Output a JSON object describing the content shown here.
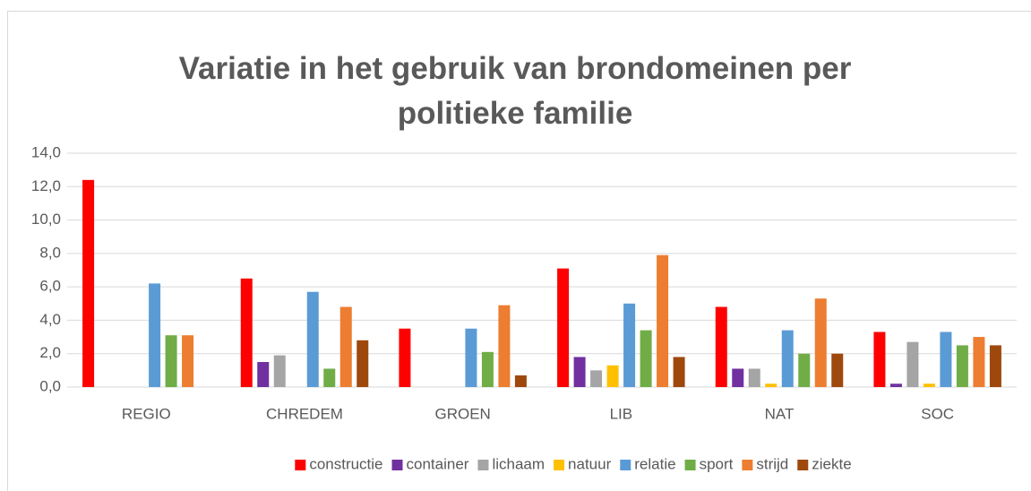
{
  "chart_data": {
    "type": "bar",
    "title": "Variatie in het gebruik van brondomeinen per politieke familie",
    "categories": [
      "REGIO",
      "CHREDEM",
      "GROEN",
      "LIB",
      "NAT",
      "SOC"
    ],
    "series": [
      {
        "name": "constructie",
        "color": "#ff0000",
        "values": [
          12.4,
          6.5,
          3.5,
          7.1,
          4.8,
          3.3
        ]
      },
      {
        "name": "container",
        "color": "#7030a0",
        "values": [
          0,
          1.5,
          0,
          1.8,
          1.1,
          0.2
        ]
      },
      {
        "name": "lichaam",
        "color": "#a5a5a5",
        "values": [
          0,
          1.9,
          0,
          1.0,
          1.1,
          2.7
        ]
      },
      {
        "name": "natuur",
        "color": "#ffc000",
        "values": [
          0,
          0,
          0,
          1.3,
          0.2,
          0.2
        ]
      },
      {
        "name": "relatie",
        "color": "#5b9bd5",
        "values": [
          6.2,
          5.7,
          3.5,
          5.0,
          3.4,
          3.3
        ]
      },
      {
        "name": "sport",
        "color": "#70ad47",
        "values": [
          3.1,
          1.1,
          2.1,
          3.4,
          2.0,
          2.5
        ]
      },
      {
        "name": "strijd",
        "color": "#ed7d31",
        "values": [
          3.1,
          4.8,
          4.9,
          7.9,
          5.3,
          3.0
        ]
      },
      {
        "name": "ziekte",
        "color": "#9e480e",
        "values": [
          0,
          2.8,
          0.7,
          1.8,
          2.0,
          2.5
        ]
      }
    ],
    "ylim": [
      0,
      14
    ],
    "yticks": [
      {
        "value": 0,
        "label": "0,0"
      },
      {
        "value": 2,
        "label": "2,0"
      },
      {
        "value": 4,
        "label": "4,0"
      },
      {
        "value": 6,
        "label": "6,0"
      },
      {
        "value": 8,
        "label": "8,0"
      },
      {
        "value": 10,
        "label": "10,0"
      },
      {
        "value": 12,
        "label": "12,0"
      },
      {
        "value": 14,
        "label": "14,0"
      }
    ],
    "grid": true,
    "legend": "bottom"
  }
}
